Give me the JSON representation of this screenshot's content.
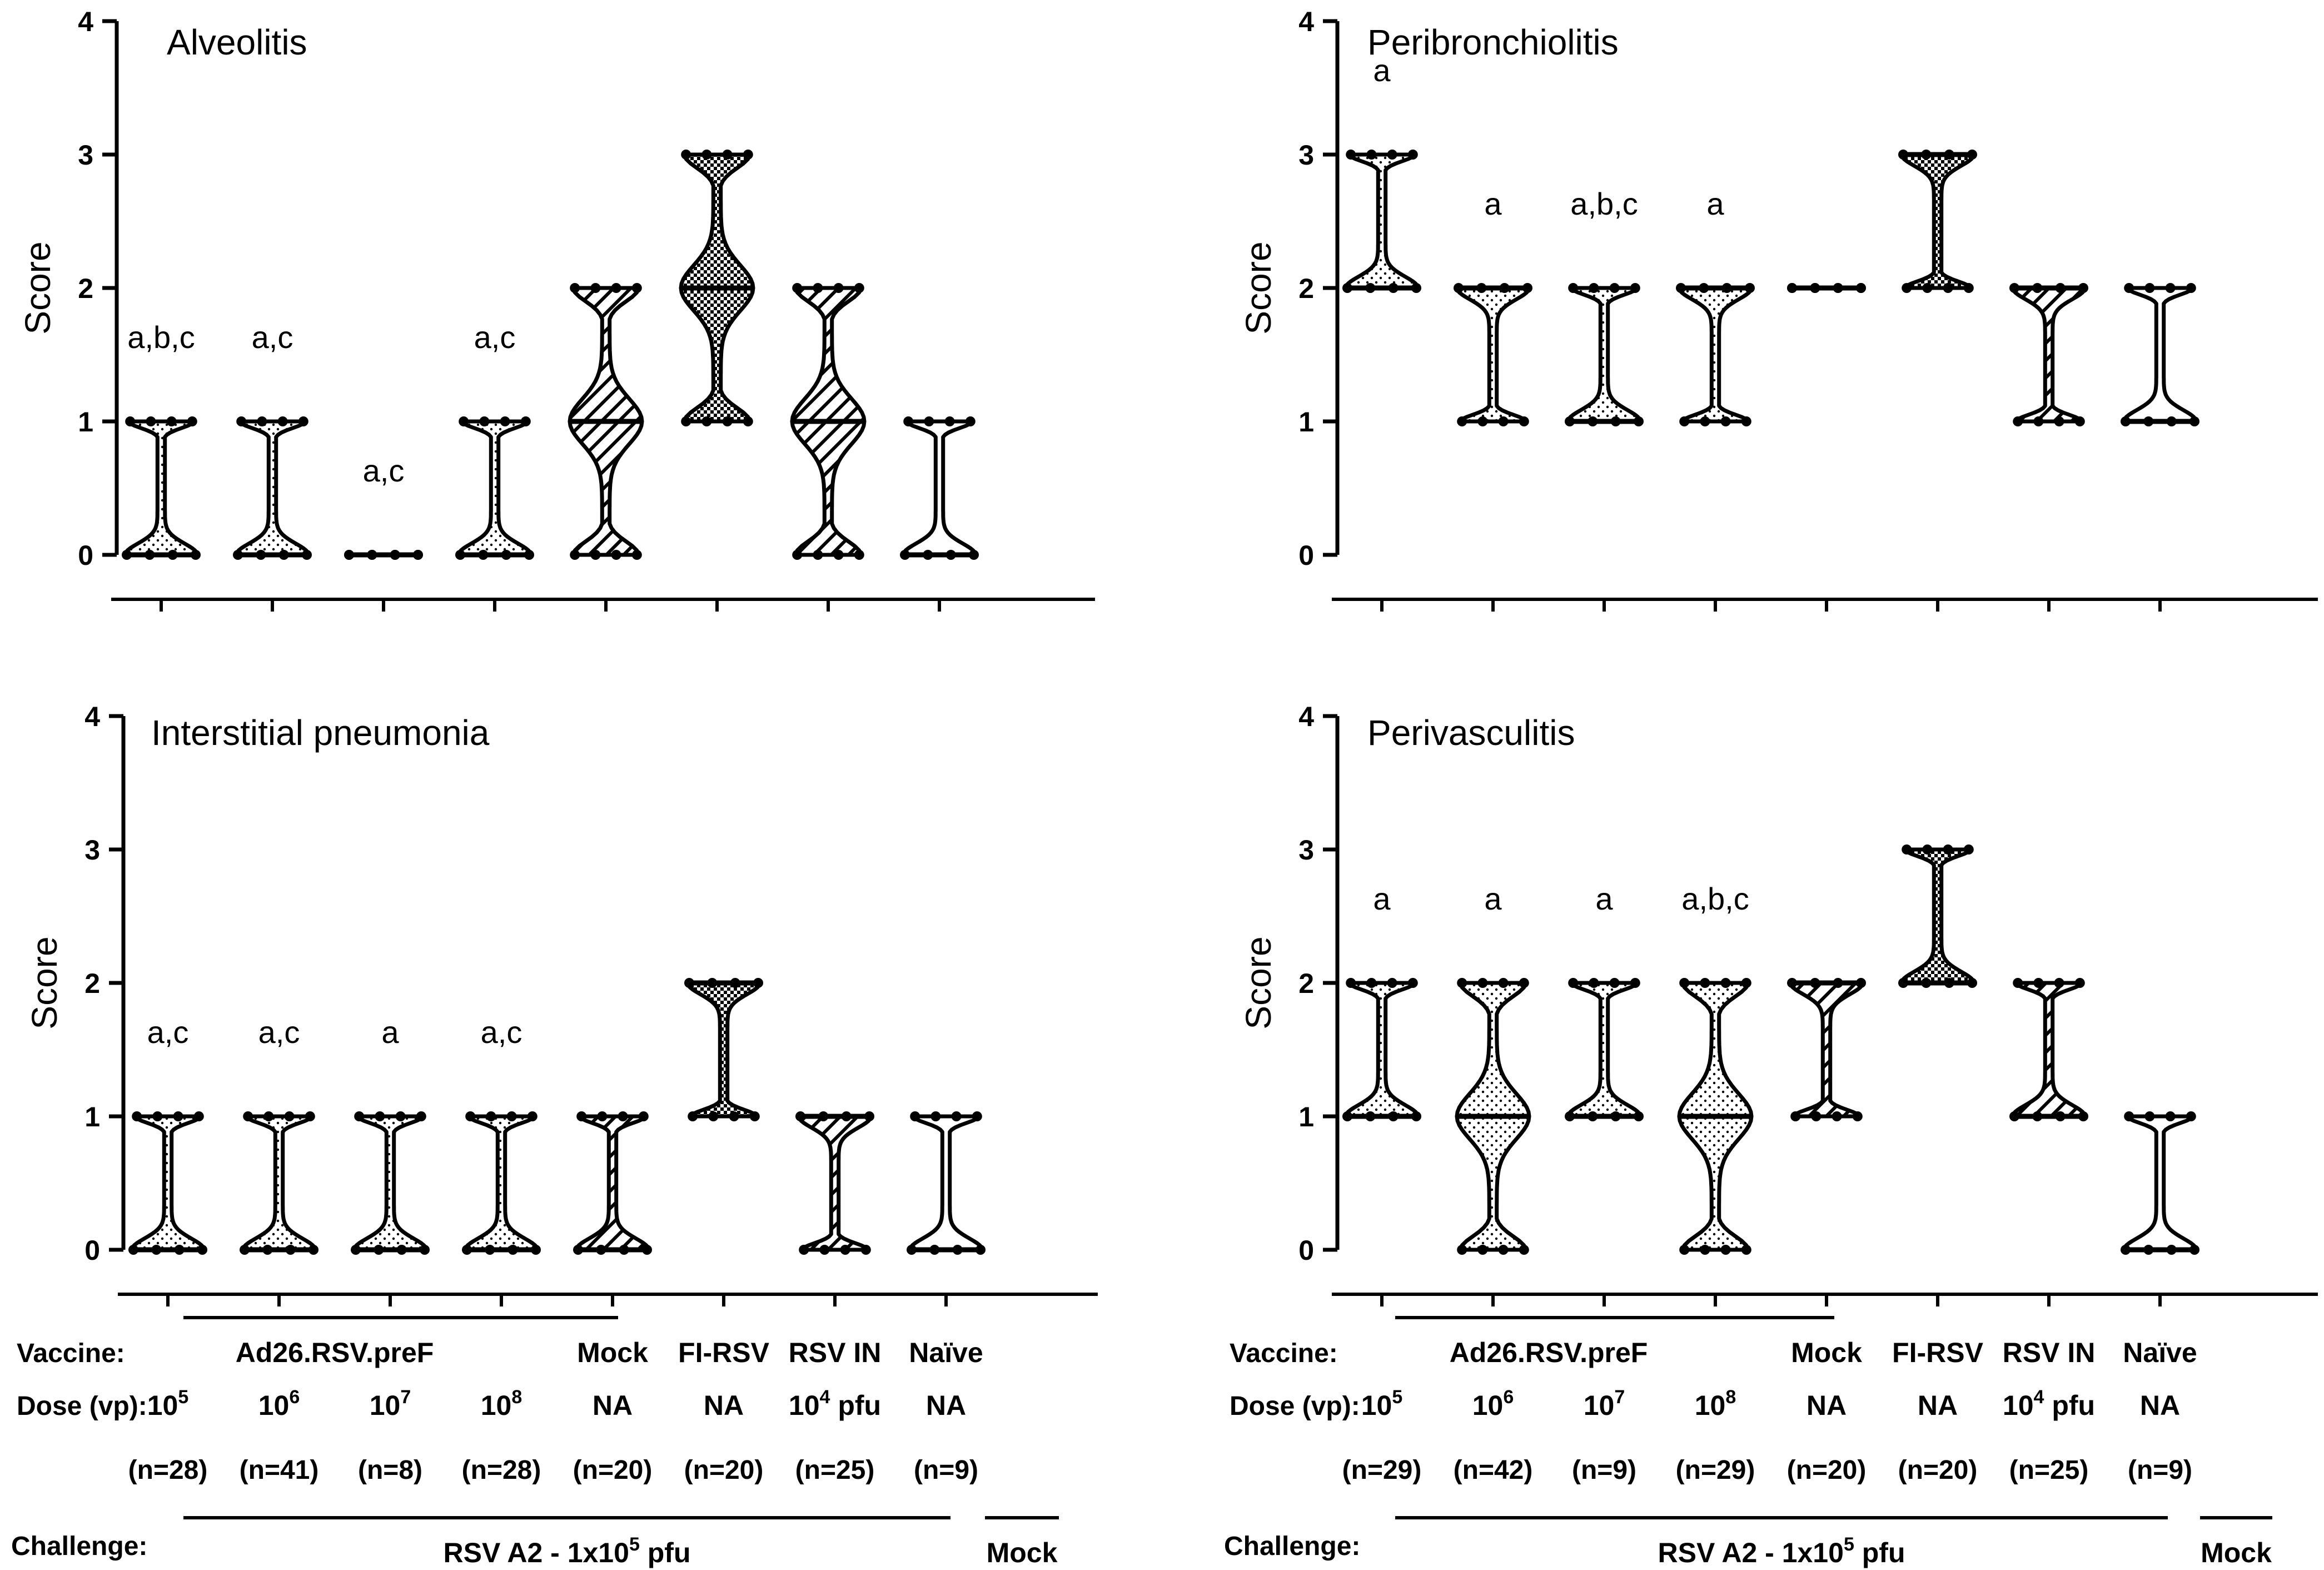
{
  "chart_data": [
    {
      "type": "violin",
      "title": "Alveolitis",
      "ylabel": "Score",
      "ylim": [
        0,
        4
      ],
      "yticks": [
        0,
        1,
        2,
        3,
        4
      ],
      "groups": [
        {
          "vaccine": "Ad26.RSV.preF",
          "dose": "10^5",
          "n": "(n=28)",
          "median": 0,
          "range": [
            0,
            1
          ],
          "annotation": "a,b,c",
          "fill": "dots"
        },
        {
          "vaccine": "Ad26.RSV.preF",
          "dose": "10^6",
          "n": "(n=41)",
          "median": 0,
          "range": [
            0,
            1
          ],
          "annotation": "a,c",
          "fill": "dots"
        },
        {
          "vaccine": "Ad26.RSV.preF",
          "dose": "10^7",
          "n": "(n=8)",
          "median": 0,
          "range": [
            0,
            0
          ],
          "annotation": "a,c",
          "fill": "dots"
        },
        {
          "vaccine": "Ad26.RSV.preF",
          "dose": "10^8",
          "n": "(n=28)",
          "median": 0,
          "range": [
            0,
            1
          ],
          "annotation": "a,c",
          "fill": "dots"
        },
        {
          "vaccine": "Mock",
          "dose": "NA",
          "n": "(n=20)",
          "median": 1,
          "range": [
            0,
            2
          ],
          "annotation": "",
          "fill": "hatch"
        },
        {
          "vaccine": "FI-RSV",
          "dose": "NA",
          "n": "(n=20)",
          "median": 2,
          "range": [
            1,
            3
          ],
          "annotation": "",
          "fill": "cross"
        },
        {
          "vaccine": "RSV IN",
          "dose": "10^4 pfu",
          "n": "(n=25)",
          "median": 1,
          "range": [
            0,
            2
          ],
          "annotation": "",
          "fill": "hatch"
        },
        {
          "vaccine": "Naïve",
          "dose": "NA",
          "n": "(n=9)",
          "median": 0,
          "range": [
            0,
            1
          ],
          "annotation": "",
          "fill": "none"
        }
      ]
    },
    {
      "type": "violin",
      "title": "Peribronchiolitis",
      "ylabel": "Score",
      "ylim": [
        0,
        4
      ],
      "yticks": [
        0,
        1,
        2,
        3,
        4
      ],
      "groups": [
        {
          "vaccine": "Ad26.RSV.preF",
          "dose": "10^5",
          "n": "(n=29)",
          "median": 2,
          "range": [
            2,
            3
          ],
          "annotation": "a",
          "fill": "dots"
        },
        {
          "vaccine": "Ad26.RSV.preF",
          "dose": "10^6",
          "n": "(n=42)",
          "median": 2,
          "range": [
            1,
            2
          ],
          "annotation": "a",
          "fill": "dots"
        },
        {
          "vaccine": "Ad26.RSV.preF",
          "dose": "10^7",
          "n": "(n=9)",
          "median": 1,
          "range": [
            1,
            2
          ],
          "annotation": "a,b,c",
          "fill": "dots"
        },
        {
          "vaccine": "Ad26.RSV.preF",
          "dose": "10^8",
          "n": "(n=29)",
          "median": 2,
          "range": [
            1,
            2
          ],
          "annotation": "a",
          "fill": "dots"
        },
        {
          "vaccine": "Mock",
          "dose": "NA",
          "n": "(n=20)",
          "median": 2,
          "range": [
            2,
            2
          ],
          "annotation": "",
          "fill": "hatch"
        },
        {
          "vaccine": "FI-RSV",
          "dose": "NA",
          "n": "(n=20)",
          "median": 3,
          "range": [
            2,
            3
          ],
          "annotation": "",
          "fill": "cross"
        },
        {
          "vaccine": "RSV IN",
          "dose": "10^4 pfu",
          "n": "(n=25)",
          "median": 2,
          "range": [
            1,
            2
          ],
          "annotation": "",
          "fill": "hatch"
        },
        {
          "vaccine": "Naïve",
          "dose": "NA",
          "n": "(n=9)",
          "median": 1,
          "range": [
            1,
            2
          ],
          "annotation": "",
          "fill": "none"
        }
      ]
    },
    {
      "type": "violin",
      "title": "Interstitial pneumonia",
      "ylabel": "Score",
      "ylim": [
        0,
        4
      ],
      "yticks": [
        0,
        1,
        2,
        3,
        4
      ],
      "groups": [
        {
          "vaccine": "Ad26.RSV.preF",
          "dose": "10^5",
          "n": "(n=28)",
          "median": 0,
          "range": [
            0,
            1
          ],
          "annotation": "a,c",
          "fill": "dots"
        },
        {
          "vaccine": "Ad26.RSV.preF",
          "dose": "10^6",
          "n": "(n=41)",
          "median": 0,
          "range": [
            0,
            1
          ],
          "annotation": "a,c",
          "fill": "dots"
        },
        {
          "vaccine": "Ad26.RSV.preF",
          "dose": "10^7",
          "n": "(n=8)",
          "median": 0,
          "range": [
            0,
            1
          ],
          "annotation": "a",
          "fill": "dots"
        },
        {
          "vaccine": "Ad26.RSV.preF",
          "dose": "10^8",
          "n": "(n=28)",
          "median": 0,
          "range": [
            0,
            1
          ],
          "annotation": "a,c",
          "fill": "dots"
        },
        {
          "vaccine": "Mock",
          "dose": "NA",
          "n": "(n=20)",
          "median": 0,
          "range": [
            0,
            1
          ],
          "annotation": "",
          "fill": "hatch"
        },
        {
          "vaccine": "FI-RSV",
          "dose": "NA",
          "n": "(n=20)",
          "median": 2,
          "range": [
            1,
            2
          ],
          "annotation": "",
          "fill": "cross"
        },
        {
          "vaccine": "RSV IN",
          "dose": "10^4 pfu",
          "n": "(n=25)",
          "median": 1,
          "range": [
            0,
            1
          ],
          "annotation": "",
          "fill": "hatch"
        },
        {
          "vaccine": "Naïve",
          "dose": "NA",
          "n": "(n=9)",
          "median": 0,
          "range": [
            0,
            1
          ],
          "annotation": "",
          "fill": "none"
        }
      ]
    },
    {
      "type": "violin",
      "title": "Perivasculitis",
      "ylabel": "Score",
      "ylim": [
        0,
        4
      ],
      "yticks": [
        0,
        1,
        2,
        3,
        4
      ],
      "groups": [
        {
          "vaccine": "Ad26.RSV.preF",
          "dose": "10^5",
          "n": "(n=29)",
          "median": 1,
          "range": [
            1,
            2
          ],
          "annotation": "a",
          "fill": "dots"
        },
        {
          "vaccine": "Ad26.RSV.preF",
          "dose": "10^6",
          "n": "(n=42)",
          "median": 1,
          "range": [
            0,
            2
          ],
          "annotation": "a",
          "fill": "dots"
        },
        {
          "vaccine": "Ad26.RSV.preF",
          "dose": "10^7",
          "n": "(n=9)",
          "median": 1,
          "range": [
            1,
            2
          ],
          "annotation": "a",
          "fill": "dots"
        },
        {
          "vaccine": "Ad26.RSV.preF",
          "dose": "10^8",
          "n": "(n=29)",
          "median": 1,
          "range": [
            0,
            2
          ],
          "annotation": "a,b,c",
          "fill": "dots"
        },
        {
          "vaccine": "Mock",
          "dose": "NA",
          "n": "(n=20)",
          "median": 2,
          "range": [
            1,
            2
          ],
          "annotation": "",
          "fill": "hatch"
        },
        {
          "vaccine": "FI-RSV",
          "dose": "NA",
          "n": "(n=20)",
          "median": 2,
          "range": [
            2,
            3
          ],
          "annotation": "",
          "fill": "cross"
        },
        {
          "vaccine": "RSV IN",
          "dose": "10^4 pfu",
          "n": "(n=25)",
          "median": 1,
          "range": [
            1,
            2
          ],
          "annotation": "",
          "fill": "hatch"
        },
        {
          "vaccine": "Naïve",
          "dose": "NA",
          "n": "(n=9)",
          "median": 0,
          "range": [
            0,
            1
          ],
          "annotation": "",
          "fill": "none"
        }
      ]
    }
  ],
  "labels": {
    "vaccine_row": "Vaccine:",
    "dose_row": "Dose (vp):",
    "challenge_row": "Challenge:",
    "ad26_group": "Ad26.RSV.preF",
    "challenge_rsv": "RSV A2 - 1x10",
    "challenge_rsv_exp": "5",
    "challenge_rsv_unit": " pfu",
    "challenge_mock": "Mock",
    "vaccines": [
      "Mock",
      "FI-RSV",
      "RSV IN",
      "Naïve"
    ],
    "dose_base": "10",
    "dose_exps": [
      "5",
      "6",
      "7",
      "8"
    ],
    "dose_na": "NA",
    "dose_rsvin_exp": "4",
    "dose_rsvin_unit": " pfu",
    "n_left": [
      "(n=28)",
      "(n=41)",
      "(n=8)",
      "(n=28)",
      "(n=20)",
      "(n=20)",
      "(n=25)",
      "(n=9)"
    ],
    "n_right": [
      "(n=29)",
      "(n=42)",
      "(n=9)",
      "(n=29)",
      "(n=20)",
      "(n=20)",
      "(n=25)",
      "(n=9)"
    ]
  }
}
